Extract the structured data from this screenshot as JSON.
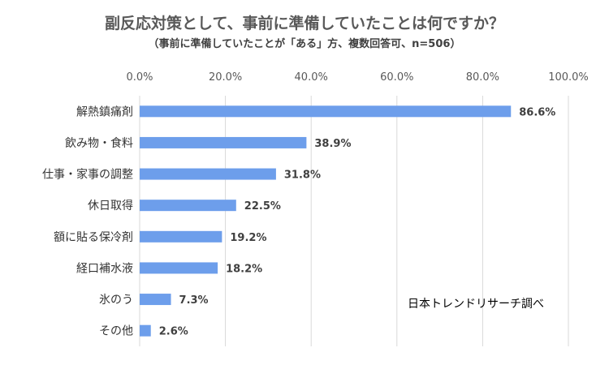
{
  "chart_data": {
    "type": "bar",
    "orientation": "horizontal",
    "title": "副反応対策として、事前に準備していたことは何ですか？",
    "subtitle": "（事前に準備していたことが「ある」方、複数回答可、n=506）",
    "categories": [
      "解熱鎮痛剤",
      "飲み物・食料",
      "仕事・家事の調整",
      "休日取得",
      "額に貼る保冷剤",
      "経口補水液",
      "氷のう",
      "その他"
    ],
    "values": [
      86.6,
      38.9,
      31.8,
      22.5,
      19.2,
      18.2,
      7.3,
      2.6
    ],
    "value_labels": [
      "86.6%",
      "38.9%",
      "31.8%",
      "22.5%",
      "19.2%",
      "18.2%",
      "7.3%",
      "2.6%"
    ],
    "x_ticks": [
      "0.0%",
      "20.0%",
      "40.0%",
      "60.0%",
      "80.0%",
      "100.0%"
    ],
    "xlim": [
      0,
      100
    ],
    "axis_position": "top",
    "grid": true,
    "bar_color": "#6d9eeb",
    "grid_color": "#d9d9d9"
  },
  "credit": "日本トレンドリサーチ調べ"
}
